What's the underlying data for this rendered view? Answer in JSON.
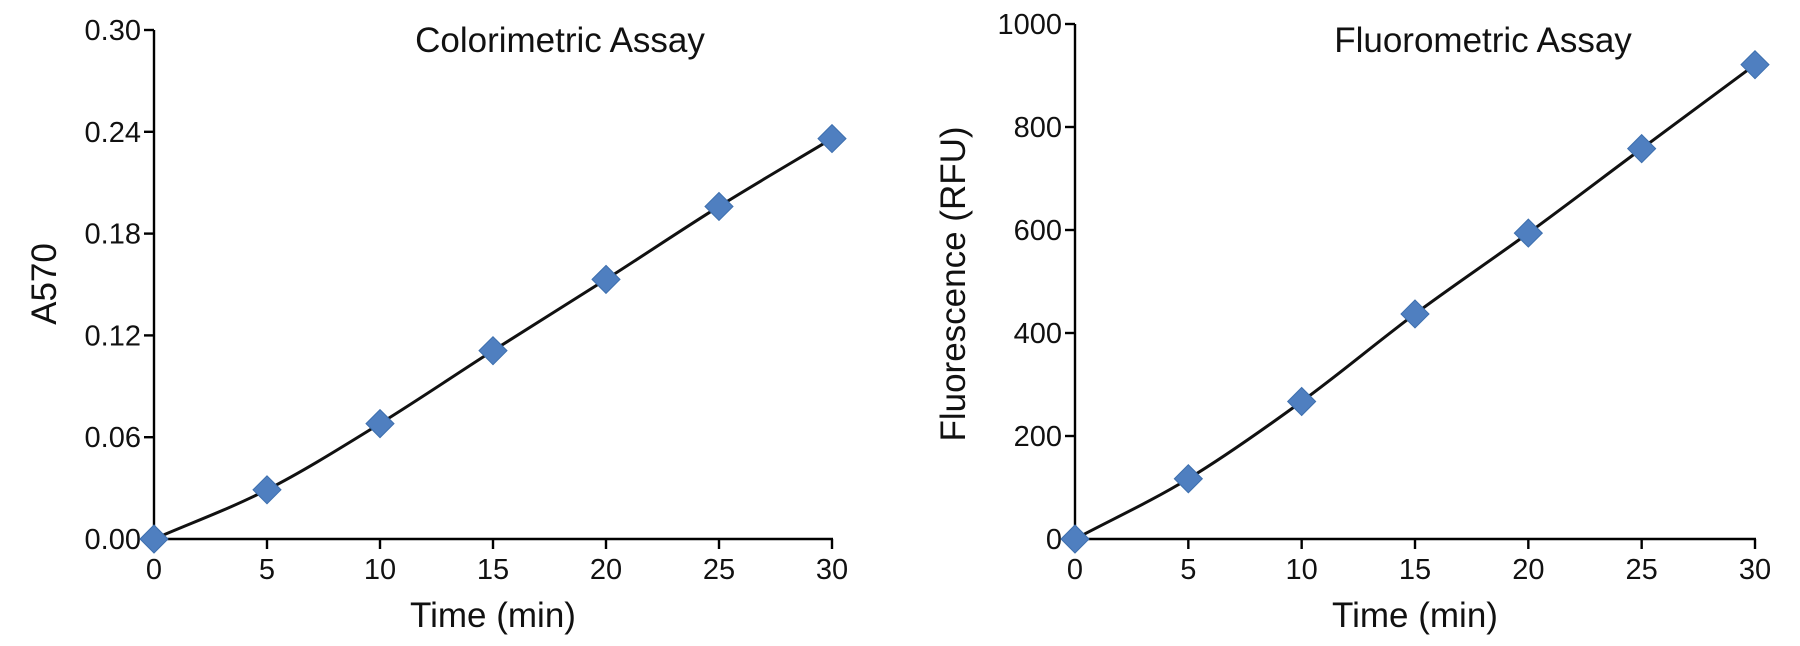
{
  "chart_data": [
    {
      "type": "line",
      "title": "Colorimetric Assay",
      "xlabel": "Time (min)",
      "ylabel": "A570",
      "x": [
        0,
        5,
        10,
        15,
        20,
        25,
        30
      ],
      "series": [
        {
          "values": [
            0.0,
            0.029,
            0.068,
            0.111,
            0.153,
            0.196,
            0.236
          ]
        }
      ],
      "xlim": [
        0,
        30
      ],
      "ylim": [
        0,
        0.3
      ],
      "xticks": [
        "0",
        "5",
        "10",
        "15",
        "20",
        "25",
        "30"
      ],
      "yticks": [
        "0.00",
        "0.06",
        "0.12",
        "0.18",
        "0.24",
        "0.30"
      ],
      "marker": "diamond",
      "marker_color": "#4f7fc0",
      "line_color": "#111111",
      "grid": false
    },
    {
      "type": "line",
      "title": "Fluorometric Assay",
      "xlabel": "Time (min)",
      "ylabel": "Fluorescence (RFU)",
      "x": [
        0,
        5,
        10,
        15,
        20,
        25,
        30
      ],
      "series": [
        {
          "values": [
            0,
            117,
            267,
            437,
            594,
            758,
            921
          ]
        }
      ],
      "xlim": [
        0,
        30
      ],
      "ylim": [
        0,
        1000
      ],
      "xticks": [
        "0",
        "5",
        "10",
        "15",
        "20",
        "25",
        "30"
      ],
      "yticks": [
        "0",
        "200",
        "400",
        "600",
        "800",
        "1000"
      ],
      "marker": "diamond",
      "marker_color": "#4f7fc0",
      "line_color": "#111111",
      "grid": false
    }
  ]
}
